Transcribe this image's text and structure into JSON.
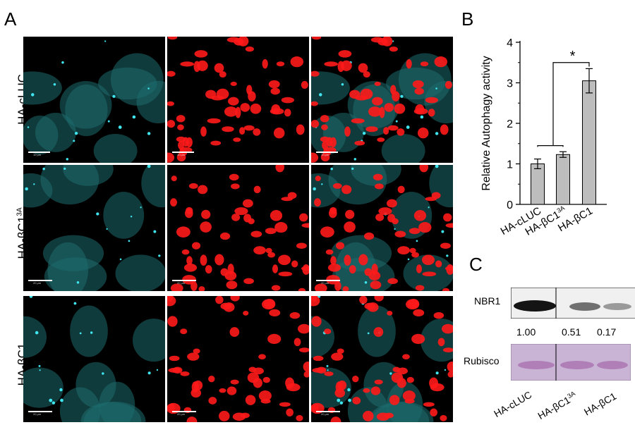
{
  "panels": {
    "a": "A",
    "b": "B",
    "c": "C"
  },
  "microscopy": {
    "rows": [
      {
        "label": "HA-cLUC",
        "sup": ""
      },
      {
        "label": "HA-βC1",
        "sup": "3A"
      },
      {
        "label": "HA-βC1",
        "sup": ""
      }
    ],
    "scalebar_text": [
      "10 μm",
      "10 μm",
      "10 μm",
      "20 μm",
      "20 μm",
      "20 μm",
      "20 μm",
      "20 μm",
      "20 μm"
    ]
  },
  "chart_data": {
    "type": "bar",
    "categories": [
      {
        "label": "HA-cLUC",
        "sup": ""
      },
      {
        "label": "HA-βC1",
        "sup": "3A"
      },
      {
        "label": "HA-βC1",
        "sup": ""
      }
    ],
    "values": [
      1.0,
      1.23,
      3.05
    ],
    "errors": [
      0.12,
      0.07,
      0.3
    ],
    "ylabel": "Relative Autophagy activity",
    "ylim": [
      0,
      4
    ],
    "yticks": [
      "0",
      "1",
      "2",
      "3",
      "4"
    ],
    "significance": "*",
    "bar_color": "#bdbdbd",
    "grid": false
  },
  "blot": {
    "rows": [
      {
        "label": "NBR1"
      },
      {
        "label": "Rubisco"
      }
    ],
    "quantification": [
      "1.00",
      "0.51",
      "0.17"
    ],
    "lanes": [
      {
        "label": "HA-cLUC",
        "sup": ""
      },
      {
        "label": "HA-βC1",
        "sup": "3A"
      },
      {
        "label": "HA-βC1",
        "sup": ""
      }
    ],
    "rubisco_color": "#c9b4d6"
  }
}
